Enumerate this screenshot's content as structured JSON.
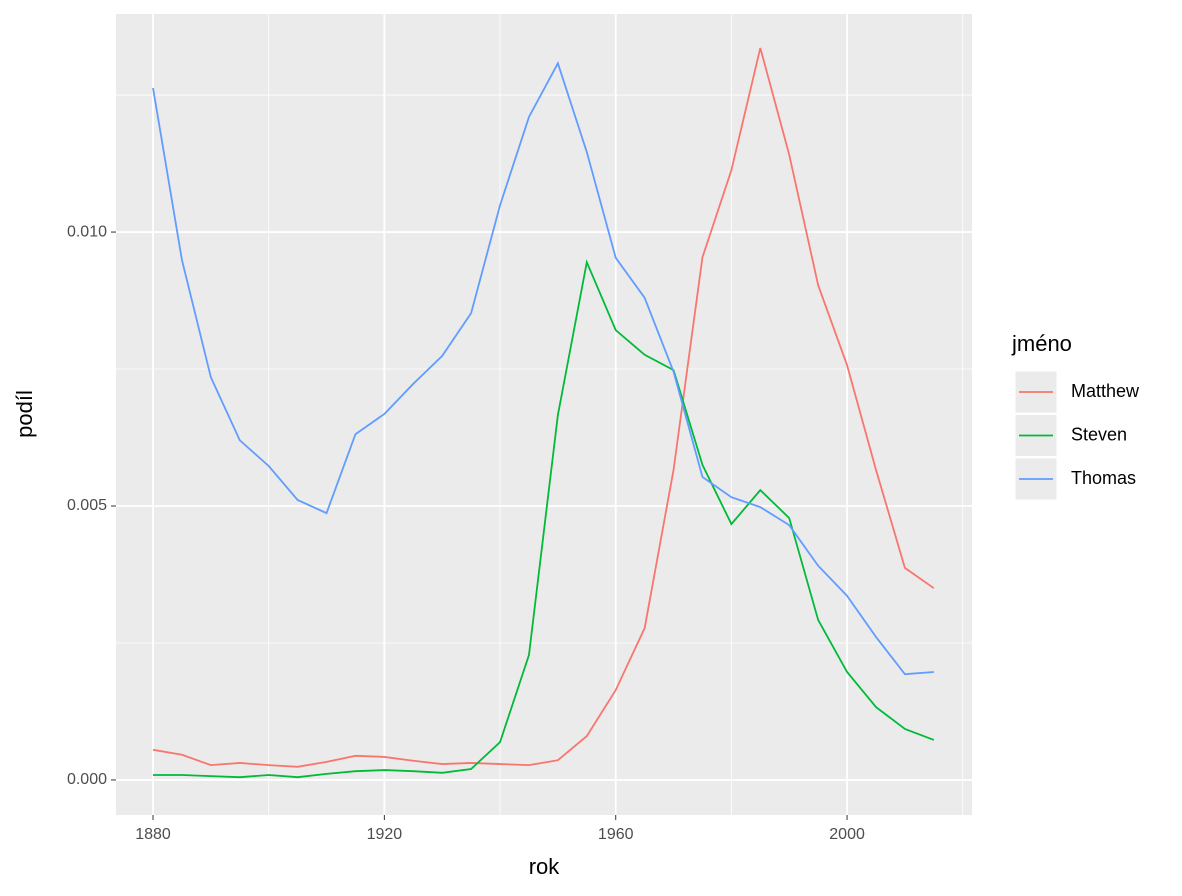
{
  "chart_data": {
    "type": "line",
    "x_label": "rok",
    "y_label": "podíl",
    "legend_title": "jméno",
    "legend_position": "right",
    "grid": true,
    "x": [
      1880,
      1885,
      1890,
      1895,
      1900,
      1905,
      1910,
      1915,
      1920,
      1925,
      1930,
      1935,
      1940,
      1945,
      1950,
      1955,
      1960,
      1965,
      1970,
      1975,
      1980,
      1985,
      1990,
      1995,
      2000,
      2005,
      2010,
      2015
    ],
    "xlim": [
      1873.6,
      2021.6
    ],
    "xticks": [
      1880,
      1920,
      1960,
      2000
    ],
    "ylim": [
      -0.00064,
      0.01398
    ],
    "yticks": [
      {
        "value": 0,
        "label": "0.000"
      },
      {
        "value": 0.005,
        "label": "0.005"
      },
      {
        "value": 0.01,
        "label": "0.010"
      }
    ],
    "series": [
      {
        "name": "Matthew",
        "color": "#F8766D",
        "values": [
          0.00055,
          0.00046,
          0.00027,
          0.00031,
          0.00027,
          0.00024,
          0.00033,
          0.00044,
          0.00042,
          0.00035,
          0.00029,
          0.00031,
          0.00029,
          0.00027,
          0.00036,
          0.0008,
          0.00164,
          0.00277,
          0.00566,
          0.00954,
          0.01113,
          0.01336,
          0.01141,
          0.00903,
          0.00757,
          0.00566,
          0.00387,
          0.0035
        ]
      },
      {
        "name": "Steven",
        "color": "#00BA38",
        "values": [
          9e-05,
          9e-05,
          7e-05,
          5e-05,
          9e-05,
          5e-05,
          0.00011,
          0.00016,
          0.00018,
          0.00016,
          0.00013,
          0.0002,
          0.00069,
          0.00228,
          0.00666,
          0.00945,
          0.00821,
          0.00776,
          0.00748,
          0.00575,
          0.00467,
          0.00529,
          0.00478,
          0.00292,
          0.00197,
          0.00133,
          0.00093,
          0.00073
        ]
      },
      {
        "name": "Thomas",
        "color": "#619CFF",
        "values": [
          0.01263,
          0.00949,
          0.00735,
          0.0062,
          0.00573,
          0.00511,
          0.00487,
          0.00631,
          0.00668,
          0.00723,
          0.00774,
          0.00852,
          0.01049,
          0.0121,
          0.01308,
          0.01146,
          0.00953,
          0.0088,
          0.00745,
          0.00553,
          0.00516,
          0.00498,
          0.00465,
          0.00391,
          0.00336,
          0.00261,
          0.00193,
          0.00197
        ]
      }
    ]
  }
}
